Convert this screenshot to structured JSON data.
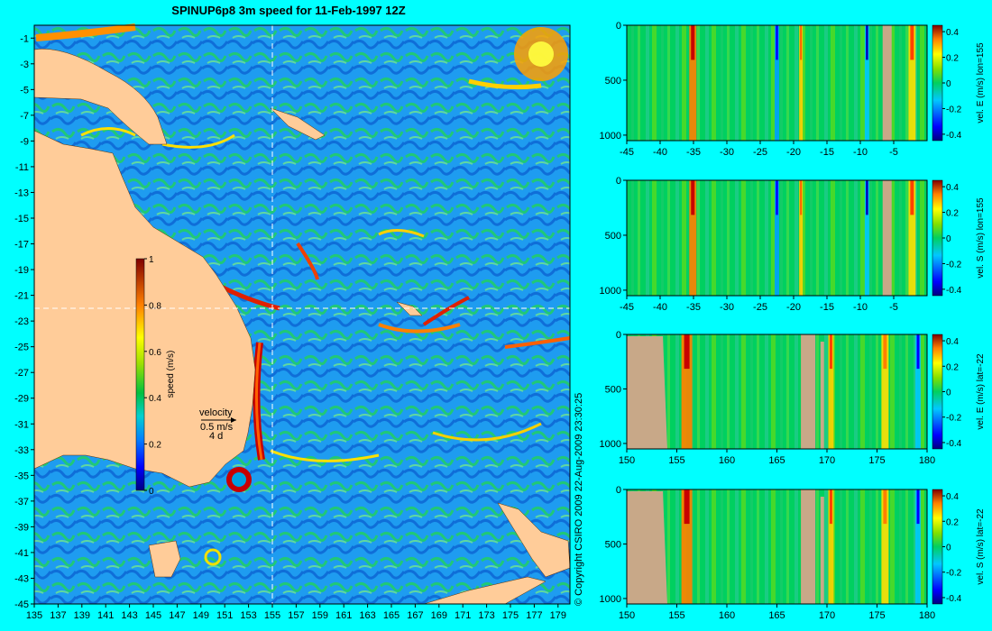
{
  "title": "SPINUP6p8 3m speed for 11-Feb-1997 12Z",
  "copyright": "© Copyright CSIRO 2009   22-Aug-2009 23:30:25",
  "colors": {
    "background": "#00ffff",
    "land": "#ffcc99",
    "land_section": "#c8a888",
    "crosshair": "#ffffff"
  },
  "map": {
    "type": "heatmap",
    "x_ticks": [
      "135",
      "137",
      "139",
      "141",
      "143",
      "145",
      "147",
      "149",
      "151",
      "153",
      "155",
      "157",
      "159",
      "161",
      "163",
      "165",
      "167",
      "169",
      "171",
      "173",
      "175",
      "177",
      "179"
    ],
    "y_ticks": [
      "-1",
      "-3",
      "-5",
      "-7",
      "-9",
      "-11",
      "-13",
      "-15",
      "-17",
      "-19",
      "-21",
      "-23",
      "-25",
      "-27",
      "-29",
      "-31",
      "-33",
      "-35",
      "-37",
      "-39",
      "-41",
      "-43",
      "-45"
    ],
    "xlim": [
      135,
      180
    ],
    "ylim": [
      -45,
      0
    ],
    "crosshair_lon": 155,
    "crosshair_lat": -22,
    "colorbar": {
      "label": "speed (m/s)",
      "ticks": [
        "1",
        "0.8",
        "0.6",
        "0.4",
        "0.2",
        "0"
      ],
      "range": [
        0,
        1
      ]
    },
    "velocity_key": {
      "title": "velocity",
      "line1": "0.5 m/s",
      "line2": "4 d"
    }
  },
  "chart_data": [
    {
      "type": "heatmap",
      "name": "vel. E (m/s) lon=155",
      "xlabel": "",
      "ylabel": "",
      "x_ticks": [
        "-45",
        "-40",
        "-35",
        "-30",
        "-25",
        "-20",
        "-15",
        "-10",
        "-5"
      ],
      "xlim": [
        -45,
        0
      ],
      "y_ticks": [
        "0",
        "500",
        "1000"
      ],
      "ylim": [
        0,
        1050
      ],
      "colorbar_label": "vel. E (m/s) lon=155",
      "colorbar_ticks": [
        "0.4",
        "0.2",
        "0",
        "-0.2",
        "-0.4"
      ],
      "crange": [
        -0.45,
        0.45
      ]
    },
    {
      "type": "heatmap",
      "name": "vel. S (m/s) lon=155",
      "xlabel": "",
      "ylabel": "",
      "x_ticks": [
        "-45",
        "-40",
        "-35",
        "-30",
        "-25",
        "-20",
        "-15",
        "-10",
        "-5"
      ],
      "xlim": [
        -45,
        0
      ],
      "y_ticks": [
        "0",
        "500",
        "1000"
      ],
      "ylim": [
        0,
        1050
      ],
      "colorbar_label": "vel. S (m/s) lon=155",
      "colorbar_ticks": [
        "0.4",
        "0.2",
        "0",
        "-0.2",
        "-0.4"
      ],
      "crange": [
        -0.45,
        0.45
      ]
    },
    {
      "type": "heatmap",
      "name": "vel. E (m/s) lat=-22",
      "xlabel": "",
      "ylabel": "",
      "x_ticks": [
        "150",
        "155",
        "160",
        "165",
        "170",
        "175",
        "180"
      ],
      "xlim": [
        150,
        180
      ],
      "y_ticks": [
        "0",
        "500",
        "1000"
      ],
      "ylim": [
        0,
        1050
      ],
      "colorbar_label": "vel. E (m/s) lat=-22",
      "colorbar_ticks": [
        "0.4",
        "0.2",
        "0",
        "-0.2",
        "-0.4"
      ],
      "crange": [
        -0.45,
        0.45
      ]
    },
    {
      "type": "heatmap",
      "name": "vel. S (m/s) lat=-22",
      "xlabel": "",
      "ylabel": "",
      "x_ticks": [
        "150",
        "155",
        "160",
        "165",
        "170",
        "175",
        "180"
      ],
      "xlim": [
        150,
        180
      ],
      "y_ticks": [
        "0",
        "500",
        "1000"
      ],
      "ylim": [
        0,
        1050
      ],
      "colorbar_label": "vel. S (m/s) lat=-22",
      "colorbar_ticks": [
        "0.4",
        "0.2",
        "0",
        "-0.2",
        "-0.4"
      ],
      "crange": [
        -0.45,
        0.45
      ]
    }
  ]
}
